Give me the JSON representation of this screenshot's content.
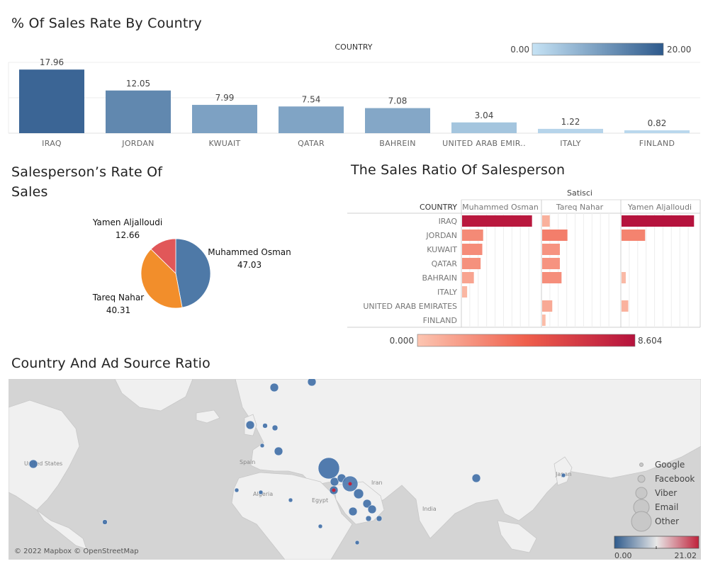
{
  "dashboard": {
    "titles": {
      "country_sales": "% Of Sales Rate By Country",
      "salesperson_rate_line1": "Salesperson’s Rate Of",
      "salesperson_rate_line2": "Sales",
      "sales_ratio": "The Sales Ratio Of Salesperson",
      "map": "Country And Ad Source Ratio"
    }
  },
  "chart_data": [
    {
      "type": "bar",
      "title": "% Of Sales Rate By Country",
      "column_header": "COUNTRY",
      "categories": [
        "IRAQ",
        "JORDAN",
        "KWUAIT",
        "QATAR",
        "BAHREIN",
        "UNITED ARAB EMIR..",
        "ITALY",
        "FINLAND"
      ],
      "values": [
        17.96,
        12.05,
        7.99,
        7.54,
        7.08,
        3.04,
        1.22,
        0.82
      ],
      "value_labels": [
        "17.96",
        "12.05",
        "7.99",
        "7.54",
        "7.08",
        "3.04",
        "1.22",
        "0.82"
      ],
      "ylim": [
        0,
        20
      ],
      "color_legend": {
        "min_label": "0.00",
        "max_label": "20.00",
        "min_color": "#c6e3f5",
        "max_color": "#2e5a8c"
      }
    },
    {
      "type": "pie",
      "title": "Salesperson’s Rate Of Sales",
      "slices": [
        {
          "label": "Muhammed Osman",
          "value_label": "47.03",
          "value": 47.03,
          "color": "#4e79a7"
        },
        {
          "label": "Tareq Nahar",
          "value_label": "40.31",
          "value": 40.31,
          "color": "#f28e2b"
        },
        {
          "label": "Yamen Aljalloudi",
          "value_label": "12.66",
          "value": 12.66,
          "color": "#e15759"
        }
      ]
    },
    {
      "type": "bar",
      "title": "The Sales Ratio Of Salesperson",
      "panel_header": "Satisci",
      "row_header": "COUNTRY",
      "categories": [
        "IRAQ",
        "JORDAN",
        "KUWAIT",
        "QATAR",
        "BAHRAIN",
        "ITALY",
        "UNITED ARAB EMIRATES",
        "FINLAND"
      ],
      "series": [
        {
          "name": "Muhammed Osman",
          "values": [
            8.3,
            2.5,
            2.4,
            2.2,
            1.4,
            0.6,
            0,
            0
          ]
        },
        {
          "name": "Tareq Nahar",
          "values": [
            0.9,
            3.0,
            2.1,
            2.1,
            2.3,
            0,
            1.2,
            0.4
          ]
        },
        {
          "name": "Yamen Aljalloudi",
          "values": [
            8.604,
            2.8,
            0,
            0,
            0.5,
            0,
            0.8,
            0
          ]
        }
      ],
      "xlim": [
        0,
        9
      ],
      "color_legend": {
        "min_label": "0.000",
        "max_label": "8.604",
        "min_color": "#fcc5b1",
        "max_color": "#b5133d"
      }
    },
    {
      "type": "scatter",
      "title": "Country And Ad Source Ratio",
      "size_legend": [
        "Google",
        "Facebook",
        "Viber",
        "Email",
        "Other"
      ],
      "color_legend": {
        "min_label": "0.00",
        "max_label": "21.02",
        "min_color": "#2e5a8c",
        "mid_color": "#e8e8e8",
        "max_color": "#c0223b"
      },
      "attribution": "© 2022 Mapbox © OpenStreetMap",
      "map_labels": [
        "United States",
        "Spain",
        "Algeria",
        "Egypt",
        "Iran",
        "India",
        "Japan"
      ]
    }
  ]
}
